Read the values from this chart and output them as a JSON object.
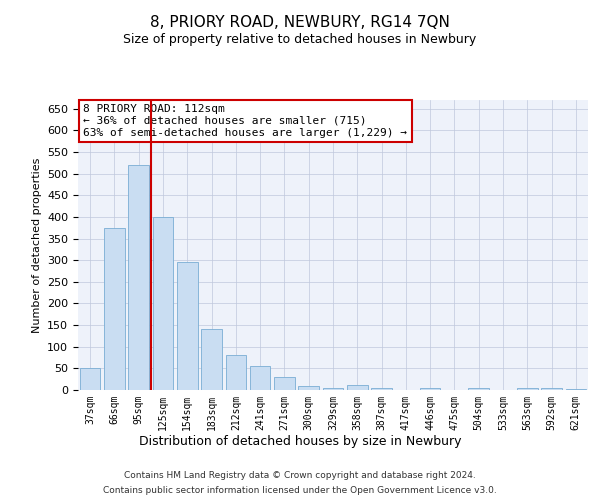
{
  "title": "8, PRIORY ROAD, NEWBURY, RG14 7QN",
  "subtitle": "Size of property relative to detached houses in Newbury",
  "xlabel": "Distribution of detached houses by size in Newbury",
  "ylabel": "Number of detached properties",
  "categories": [
    "37sqm",
    "66sqm",
    "95sqm",
    "125sqm",
    "154sqm",
    "183sqm",
    "212sqm",
    "241sqm",
    "271sqm",
    "300sqm",
    "329sqm",
    "358sqm",
    "387sqm",
    "417sqm",
    "446sqm",
    "475sqm",
    "504sqm",
    "533sqm",
    "563sqm",
    "592sqm",
    "621sqm"
  ],
  "values": [
    50,
    375,
    520,
    400,
    295,
    140,
    80,
    55,
    30,
    10,
    5,
    12,
    5,
    0,
    5,
    0,
    5,
    0,
    5,
    5,
    2
  ],
  "bar_color": "#c9ddf2",
  "bar_edge_color": "#7aadd4",
  "vline_x": 2.5,
  "vline_color": "#cc0000",
  "annotation_text": "8 PRIORY ROAD: 112sqm\n← 36% of detached houses are smaller (715)\n63% of semi-detached houses are larger (1,229) →",
  "annotation_box_color": "#ffffff",
  "annotation_box_edge": "#cc0000",
  "ylim": [
    0,
    670
  ],
  "yticks": [
    0,
    50,
    100,
    150,
    200,
    250,
    300,
    350,
    400,
    450,
    500,
    550,
    600,
    650
  ],
  "footer_line1": "Contains HM Land Registry data © Crown copyright and database right 2024.",
  "footer_line2": "Contains public sector information licensed under the Open Government Licence v3.0.",
  "bg_color": "#eef2fa",
  "fig_bg_color": "#ffffff"
}
